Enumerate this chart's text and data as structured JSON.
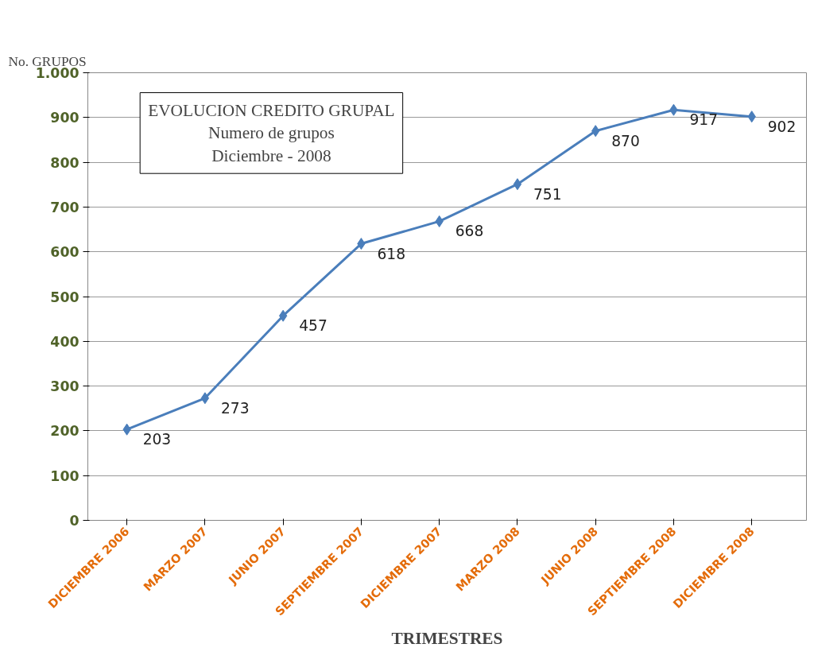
{
  "chart_data": {
    "type": "line",
    "title": "EVOLUCION CREDITO GRUPAL",
    "subtitle": "Numero de grupos\nDiciembre - 2008",
    "xlabel": "TRIMESTRES",
    "ylabel": "No. GRUPOS",
    "categories": [
      "DICIEMBRE 2006",
      "MARZO 2007",
      "JUNIO 2007",
      "SEPTIEMBRE 2007",
      "DICIEMBRE 2007",
      "MARZO 2008",
      "JUNIO 2008",
      "SEPTIEMBRE 2008",
      "DICIEMBRE 2008"
    ],
    "series": [
      {
        "color": "#4a7ebb",
        "values": [
          203,
          273,
          457,
          618,
          668,
          751,
          870,
          917,
          902
        ]
      }
    ],
    "ylim": [
      0,
      1000
    ],
    "yticks": [
      0,
      100,
      200,
      300,
      400,
      500,
      600,
      700,
      800,
      900,
      {
        "value": 1000,
        "label": "1.000"
      }
    ],
    "grid": "y",
    "marker": "diamond",
    "line_style": "solid",
    "data_labels": true
  }
}
